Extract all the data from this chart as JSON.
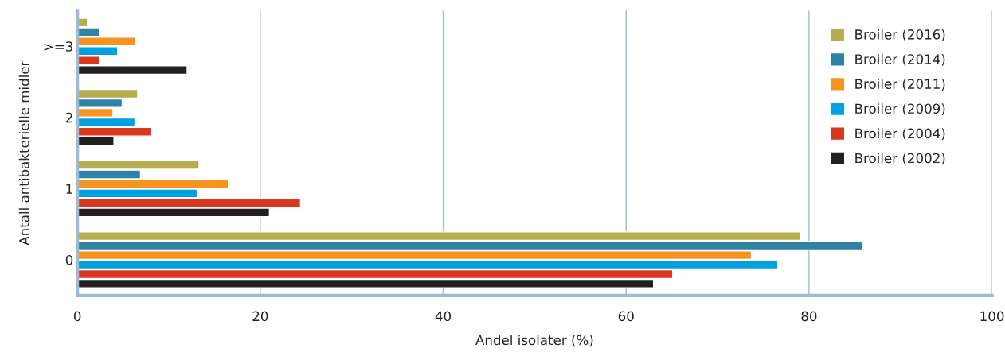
{
  "chart_data": {
    "type": "bar",
    "orientation": "horizontal",
    "xlabel": "Andel isolater (%)",
    "ylabel": "Antall antibakterielle midler",
    "categories": [
      ">=3",
      "2",
      "1",
      "0"
    ],
    "series": [
      {
        "name": "Broiler (2016)",
        "color": "#b5ad4e",
        "values": [
          1.1,
          6.6,
          13.3,
          79.1
        ]
      },
      {
        "name": "Broiler (2014)",
        "color": "#2e82a4",
        "values": [
          2.4,
          4.9,
          6.9,
          85.9
        ]
      },
      {
        "name": "Broiler (2011)",
        "color": "#f7941d",
        "values": [
          6.4,
          3.9,
          16.5,
          73.7
        ]
      },
      {
        "name": "Broiler (2009)",
        "color": "#00a1e0",
        "values": [
          4.4,
          6.3,
          13.1,
          76.6
        ]
      },
      {
        "name": "Broiler (2004)",
        "color": "#d9381e",
        "values": [
          2.4,
          8.1,
          24.4,
          65.1
        ]
      },
      {
        "name": "Broiler (2002)",
        "color": "#231f20",
        "values": [
          12.0,
          4.0,
          21.0,
          63.0
        ]
      }
    ],
    "xlim": [
      0,
      100
    ],
    "xticks": [
      0,
      20,
      40,
      60,
      80,
      100
    ],
    "grid": "x",
    "legend": "top right"
  }
}
